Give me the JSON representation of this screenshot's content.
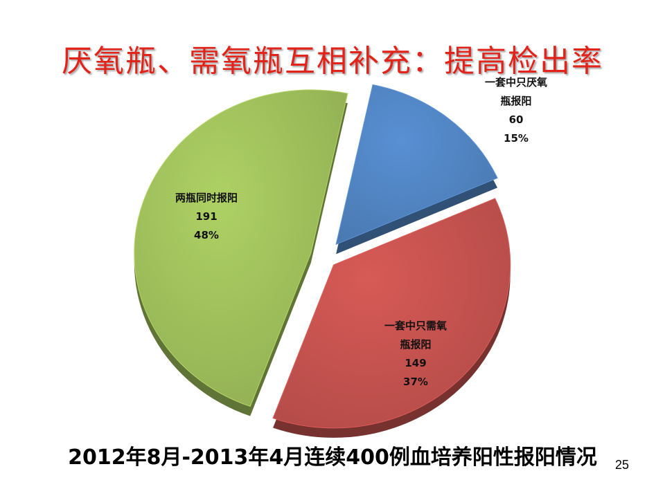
{
  "slide": {
    "title": "厌氧瓶、需氧瓶互相补充：提高检出率",
    "caption": "2012年8月-2013年4月连续400例血培养阳性报阳情况",
    "page_number": "25"
  },
  "chart_data": {
    "type": "pie",
    "style": "3d-exploded",
    "slices": [
      {
        "label_lines": [
          "一套中只厌氧",
          "瓶报阳"
        ],
        "value": 60,
        "percent": "15%",
        "color": "#4f81bd"
      },
      {
        "label_lines": [
          "一套中只需氧",
          "瓶报阳"
        ],
        "value": 149,
        "percent": "37%",
        "color": "#c0504d"
      },
      {
        "label_lines": [
          "两瓶同时报阳"
        ],
        "value": 191,
        "percent": "48%",
        "color": "#9bbb59"
      }
    ],
    "total": 400
  },
  "colors": {
    "title": "#e2231a"
  }
}
